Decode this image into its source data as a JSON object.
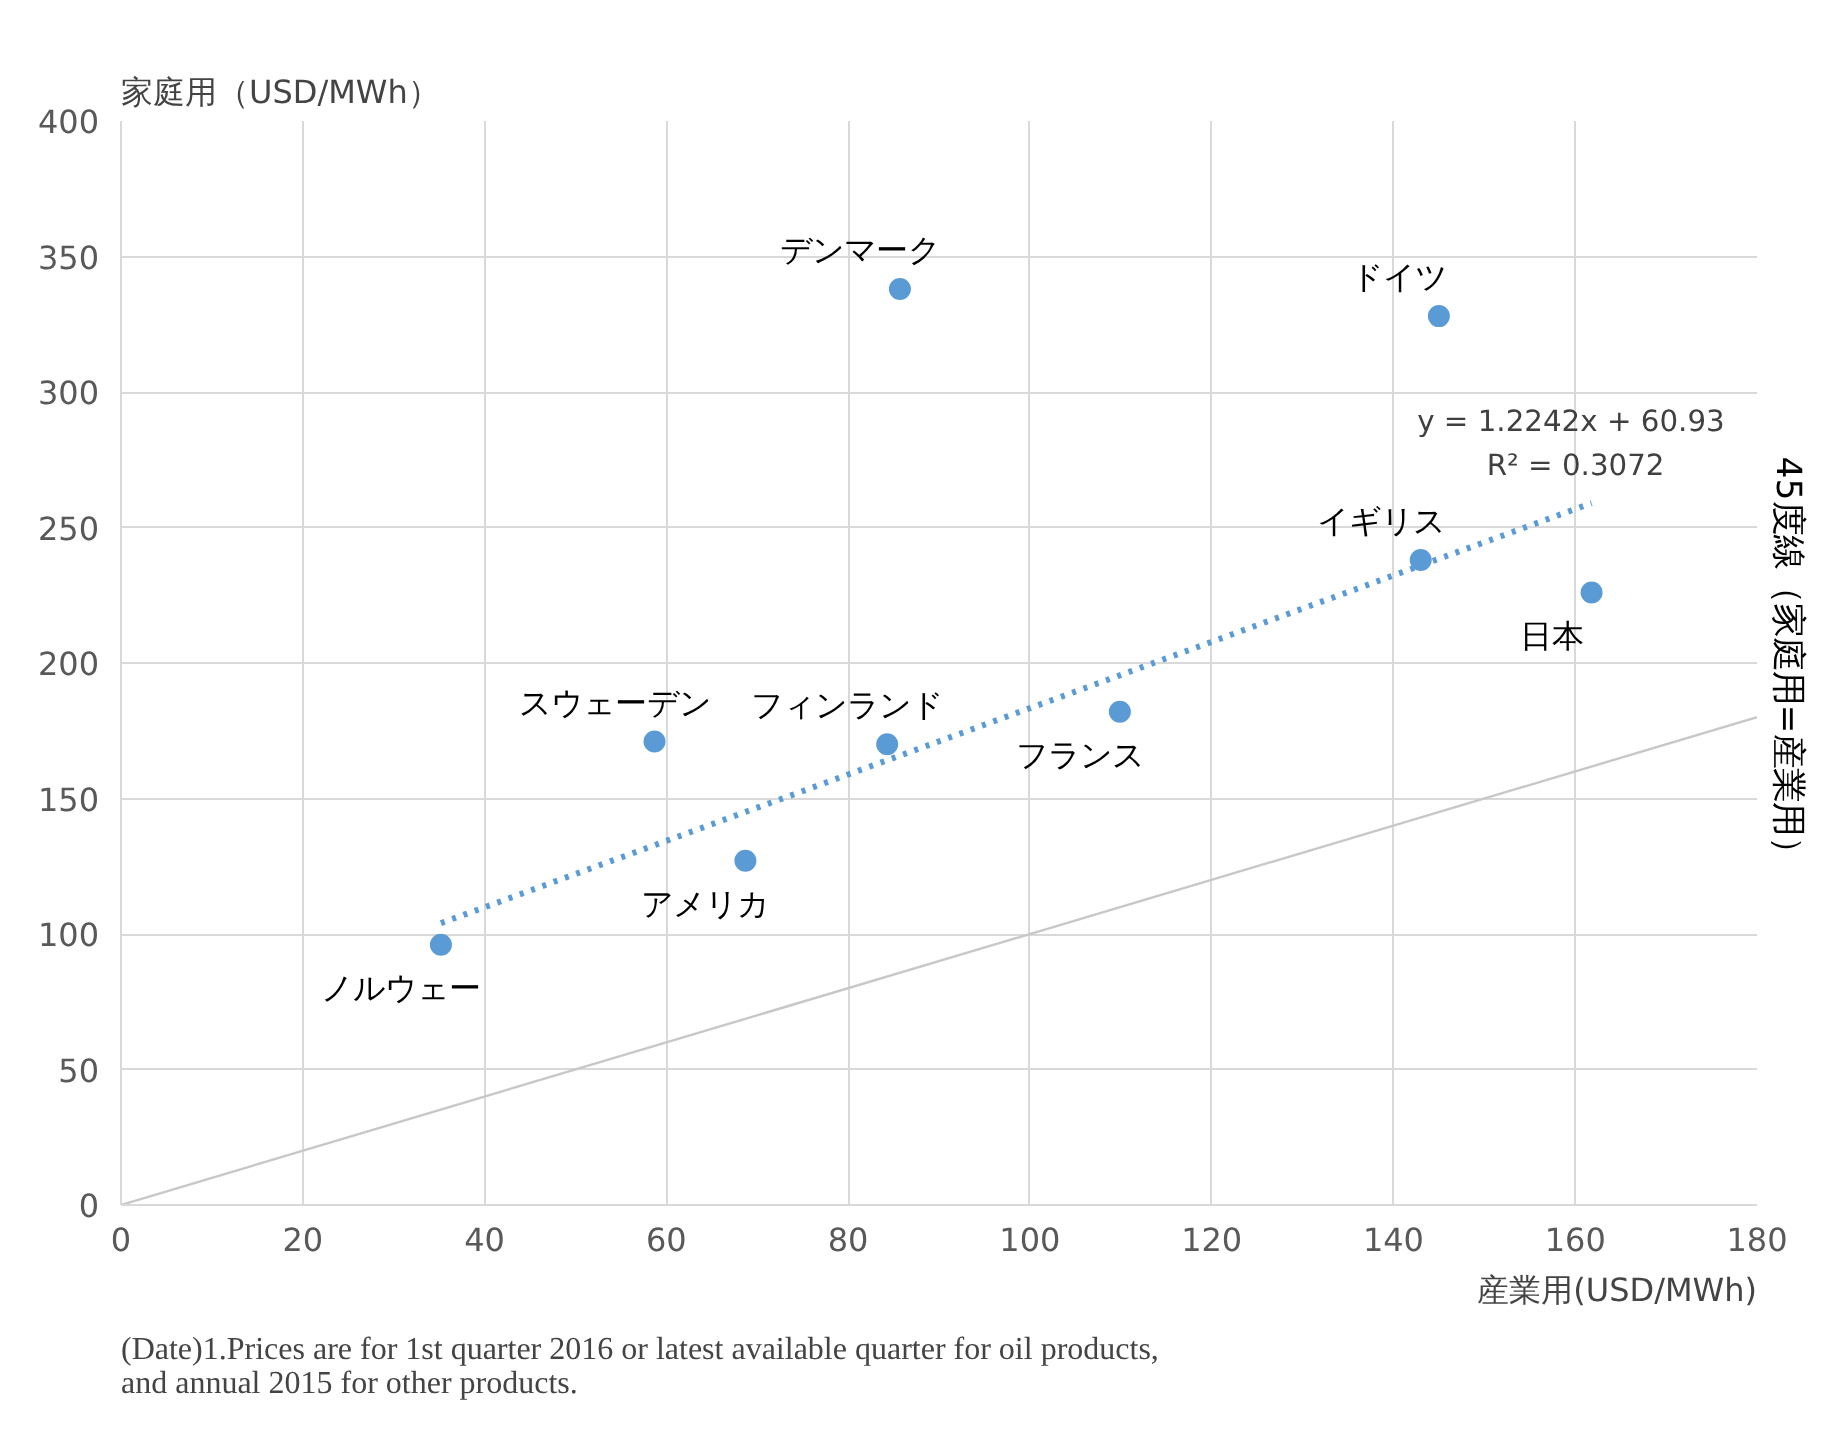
{
  "chart_data": {
    "type": "scatter",
    "xlabel": "産業用(USD/MWh)",
    "ylabel": "家庭用（USD/MWh）",
    "xlim": [
      0,
      180
    ],
    "xticks": [
      0,
      20,
      40,
      60,
      80,
      100,
      120,
      140,
      160,
      180
    ],
    "ylim": [
      0,
      400
    ],
    "yticks": [
      0,
      50,
      100,
      150,
      200,
      250,
      300,
      350,
      400
    ],
    "grid": true,
    "legend": false,
    "marker": "circle",
    "series": [
      {
        "color": "#5b9bd5",
        "x": [
          35.2,
          58.7,
          68.7,
          84.3,
          85.7,
          109.9,
          143,
          145,
          161.8
        ],
        "values": [
          96,
          171,
          127,
          170,
          338,
          182,
          238,
          328,
          226
        ]
      },
      {
        "type": "line",
        "color": "#5b9bd5",
        "line_style": "dotted",
        "marker": "none",
        "x": [
          35.2,
          161.8
        ],
        "values": [
          104.0,
          259.0
        ]
      },
      {
        "type": "line",
        "name": "45度線（家庭用=産業用）",
        "color": "#c8c8c8",
        "line_style": "solid",
        "marker": "none",
        "x": [
          0,
          180
        ],
        "values": [
          0,
          180
        ]
      }
    ],
    "annotations": [
      {
        "text": "ノルウェー",
        "x": 35.2,
        "y": 96
      },
      {
        "text": "スウェーデン",
        "x": 58.7,
        "y": 171
      },
      {
        "text": "アメリカ",
        "x": 68.7,
        "y": 127
      },
      {
        "text": "フィンランド",
        "x": 84.3,
        "y": 170
      },
      {
        "text": "デンマーク",
        "x": 85.7,
        "y": 338
      },
      {
        "text": "フランス",
        "x": 109.9,
        "y": 182
      },
      {
        "text": "イギリス",
        "x": 143,
        "y": 238
      },
      {
        "text": "ドイツ",
        "x": 145,
        "y": 328
      },
      {
        "text": "日本",
        "x": 161.8,
        "y": 226
      },
      {
        "text": "y = 1.2242x  + 60.93",
        "x": 161.8,
        "y": 259.0
      },
      {
        "text": "R² = 0.3072",
        "x": 161.8,
        "y": 259.0
      },
      "(Date)1.Prices are for 1st quarter 2016 or latest available quarter for oil products, and annual 2015 for other products."
    ]
  }
}
